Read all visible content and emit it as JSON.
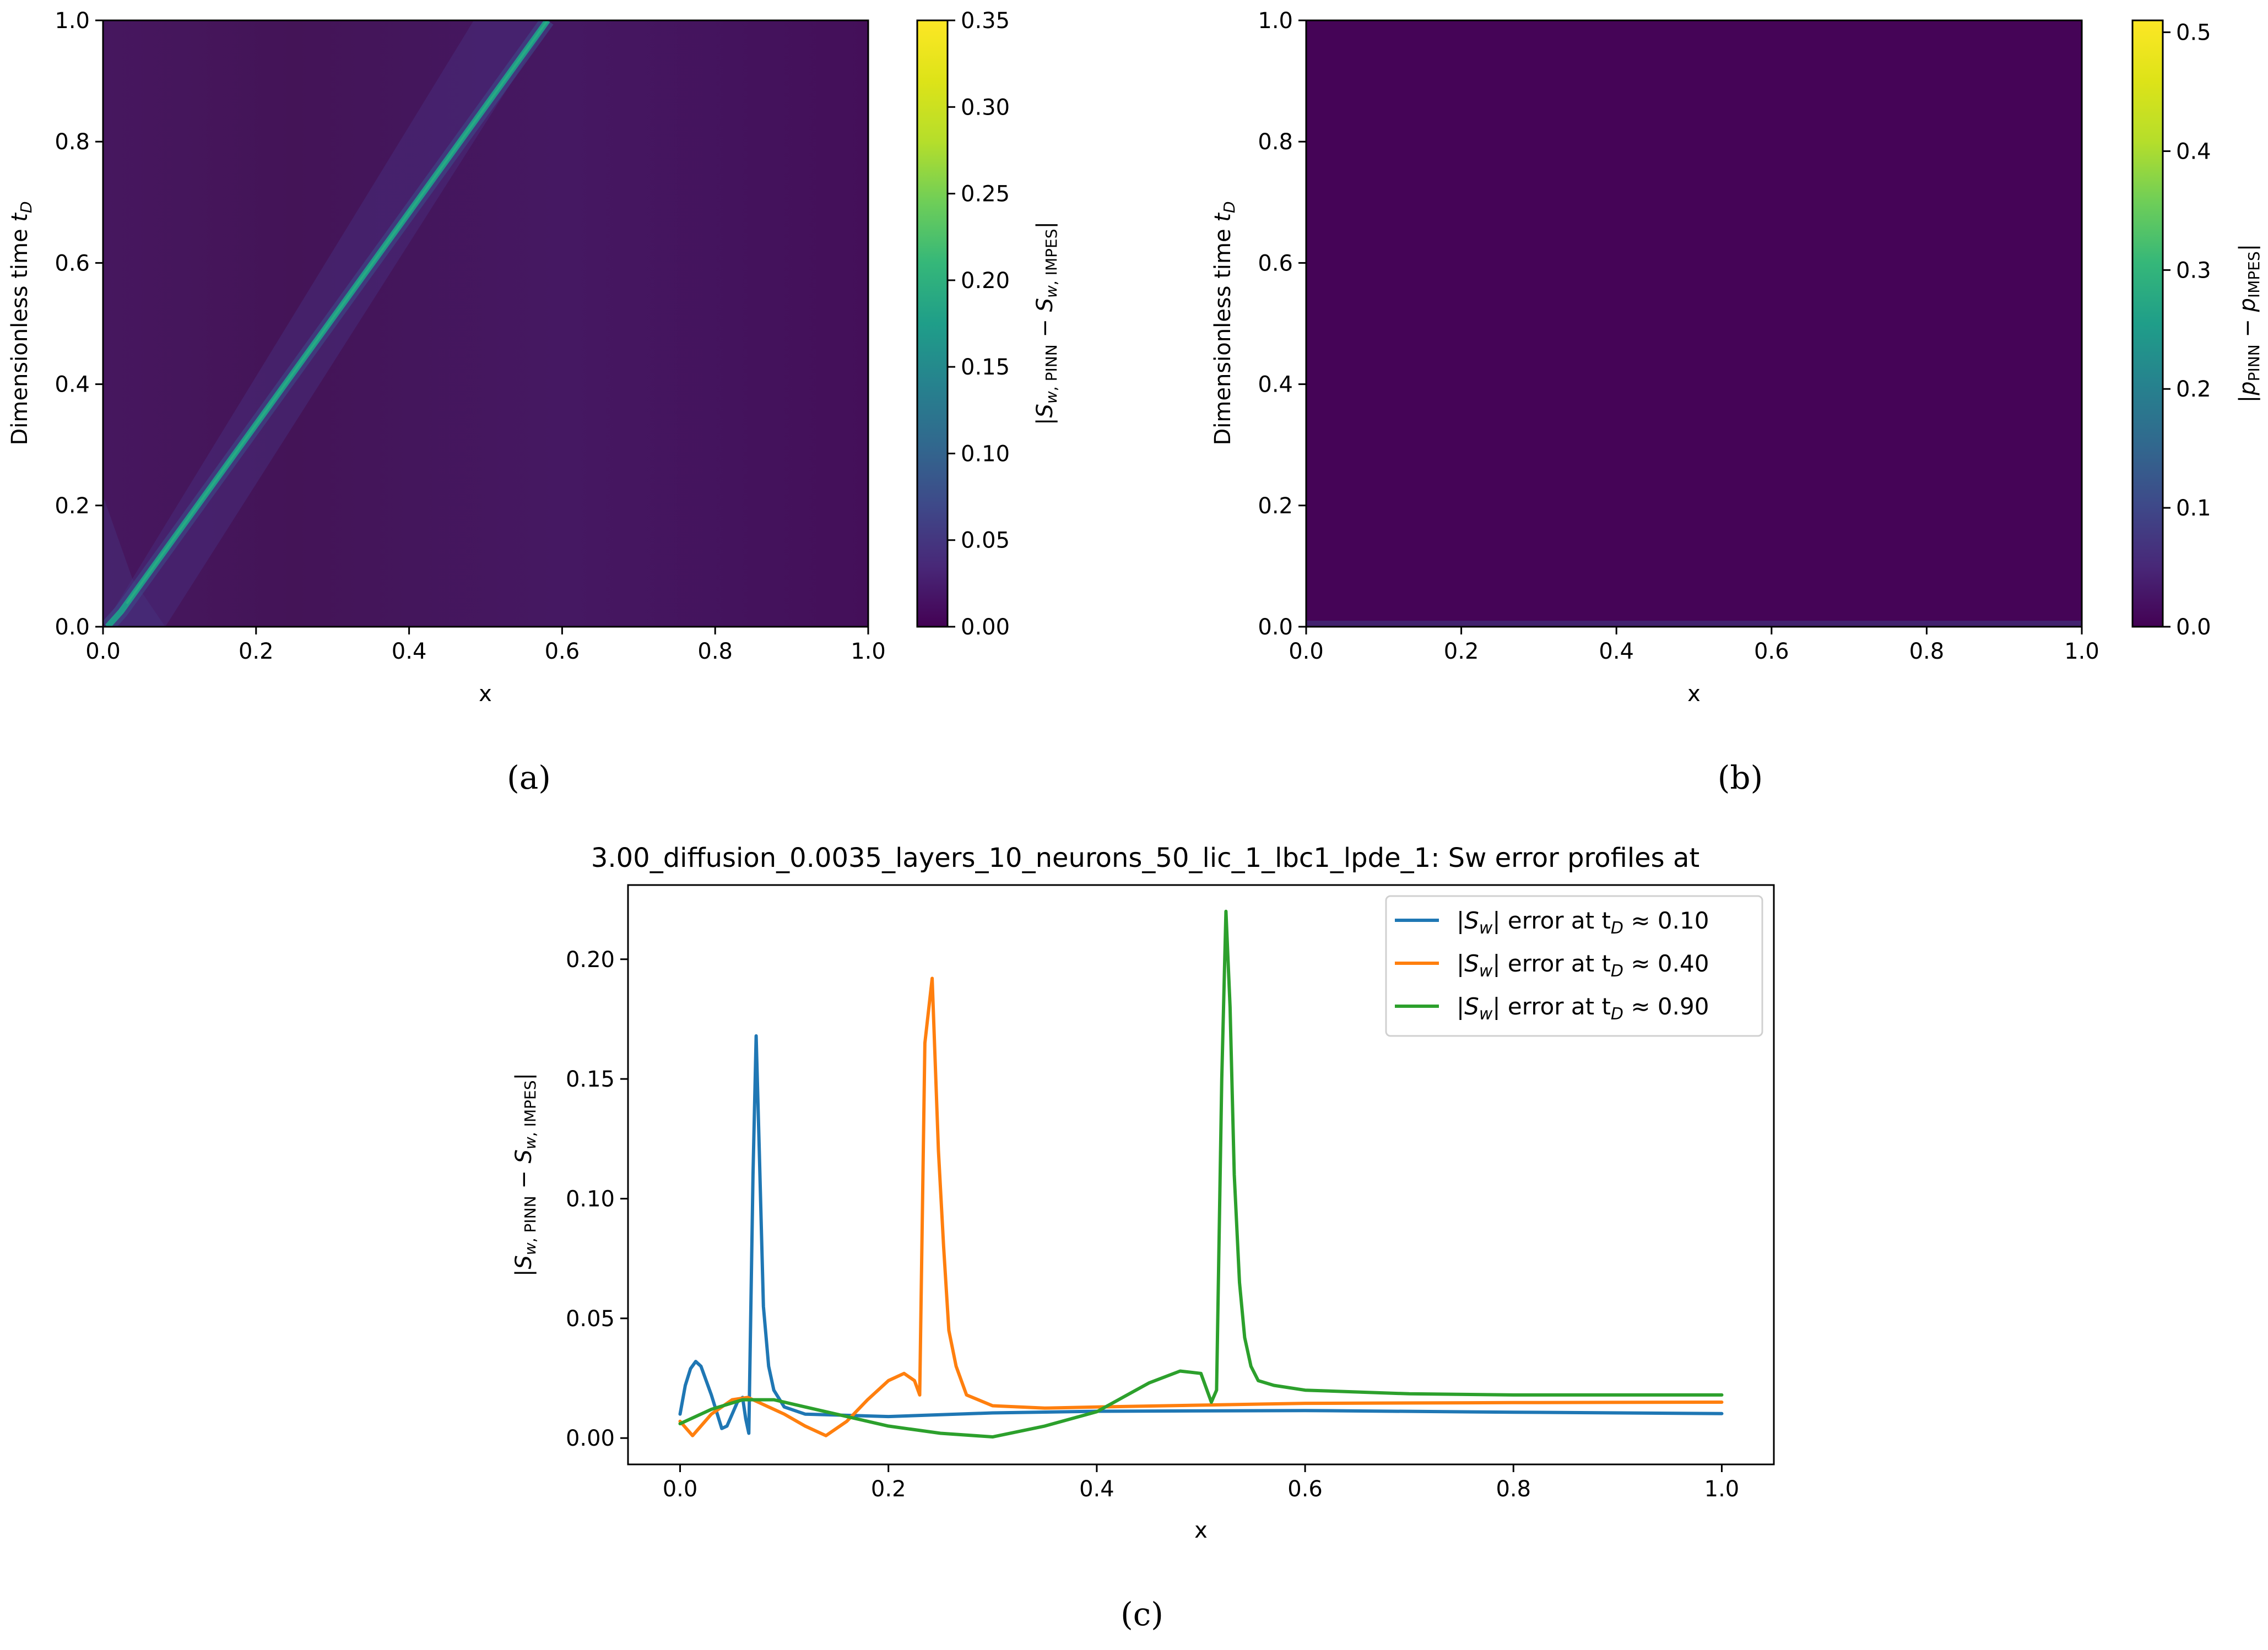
{
  "panels": {
    "a": "(a)",
    "b": "(b)",
    "c": "(c)"
  },
  "chart_data": [
    {
      "type": "heatmap",
      "panel": "(a)",
      "xlabel": "x",
      "ylabel": "Dimensionless time t_D",
      "xlim": [
        0.0,
        1.0
      ],
      "ylim": [
        0.0,
        1.0
      ],
      "xticks": [
        "0.0",
        "0.2",
        "0.4",
        "0.6",
        "0.8",
        "1.0"
      ],
      "yticks": [
        "0.0",
        "0.2",
        "0.4",
        "0.6",
        "0.8",
        "1.0"
      ],
      "colorbar": {
        "label": "|S_w,PINN − S_w,IMPES|",
        "range": [
          0.0,
          0.35
        ],
        "ticks": [
          "0.00",
          "0.05",
          "0.10",
          "0.15",
          "0.20",
          "0.25",
          "0.30",
          "0.35"
        ],
        "colormap": "viridis"
      },
      "feature": {
        "description": "error band along saturation front",
        "front_start": [
          0.0,
          0.0
        ],
        "front_end": [
          0.58,
          1.0
        ],
        "peak_error": 0.2
      }
    },
    {
      "type": "heatmap",
      "panel": "(b)",
      "xlabel": "x",
      "ylabel": "Dimensionless time t_D",
      "xlim": [
        0.0,
        1.0
      ],
      "ylim": [
        0.0,
        1.0
      ],
      "xticks": [
        "0.0",
        "0.2",
        "0.4",
        "0.6",
        "0.8",
        "1.0"
      ],
      "yticks": [
        "0.0",
        "0.2",
        "0.4",
        "0.6",
        "0.8",
        "1.0"
      ],
      "colorbar": {
        "label": "|p_PINN − p_IMPES|",
        "range": [
          0.0,
          0.51
        ],
        "ticks": [
          "0.0",
          "0.1",
          "0.2",
          "0.3",
          "0.4",
          "0.5"
        ],
        "colormap": "viridis"
      }
    },
    {
      "type": "line",
      "panel": "(c)",
      "title": "3.00_diffusion_0.0035_layers_10_neurons_50_lic_1_lbc1_lpde_1: Sw error profiles at",
      "xlabel": "x",
      "ylabel": "|S_w,PINN − S_w,IMPES|",
      "xlim": [
        -0.05,
        1.05
      ],
      "ylim": [
        -0.011,
        0.231
      ],
      "xticks": [
        "0.0",
        "0.2",
        "0.4",
        "0.6",
        "0.8",
        "1.0"
      ],
      "yticks": [
        "0.00",
        "0.05",
        "0.10",
        "0.15",
        "0.20"
      ],
      "legend_position": "top-right",
      "series": [
        {
          "name": "|S_w| error at t_D ≈ 0.10",
          "legend_main": "|S",
          "legend_sub": "w",
          "legend_mid": "| error at t",
          "legend_sub2": "D",
          "legend_tail": " ≈ 0.10",
          "color": "#1f77b4",
          "x": [
            0.0,
            0.005,
            0.01,
            0.015,
            0.02,
            0.03,
            0.04,
            0.045,
            0.05,
            0.055,
            0.06,
            0.063,
            0.066,
            0.07,
            0.073,
            0.076,
            0.08,
            0.085,
            0.09,
            0.1,
            0.12,
            0.2,
            0.3,
            0.4,
            0.6,
            0.8,
            1.0
          ],
          "y": [
            0.01,
            0.022,
            0.029,
            0.032,
            0.03,
            0.018,
            0.004,
            0.005,
            0.01,
            0.015,
            0.017,
            0.008,
            0.002,
            0.11,
            0.168,
            0.12,
            0.055,
            0.03,
            0.02,
            0.013,
            0.01,
            0.009,
            0.0105,
            0.0112,
            0.0115,
            0.0108,
            0.0102
          ]
        },
        {
          "name": "|S_w| error at t_D ≈ 0.40",
          "legend_main": "|S",
          "legend_sub": "w",
          "legend_mid": "| error at t",
          "legend_sub2": "D",
          "legend_tail": " ≈ 0.40",
          "color": "#ff7f0e",
          "x": [
            0.0,
            0.012,
            0.03,
            0.05,
            0.065,
            0.08,
            0.1,
            0.12,
            0.14,
            0.16,
            0.18,
            0.2,
            0.215,
            0.225,
            0.23,
            0.235,
            0.242,
            0.248,
            0.253,
            0.258,
            0.265,
            0.275,
            0.3,
            0.35,
            0.4,
            0.6,
            0.8,
            1.0
          ],
          "y": [
            0.007,
            0.001,
            0.01,
            0.016,
            0.017,
            0.014,
            0.01,
            0.005,
            0.001,
            0.007,
            0.016,
            0.024,
            0.027,
            0.024,
            0.018,
            0.165,
            0.192,
            0.12,
            0.08,
            0.045,
            0.03,
            0.018,
            0.0135,
            0.0125,
            0.013,
            0.0145,
            0.0148,
            0.015
          ]
        },
        {
          "name": "|S_w| error at t_D ≈ 0.90",
          "legend_main": "|S",
          "legend_sub": "w",
          "legend_mid": "| error at t",
          "legend_sub2": "D",
          "legend_tail": " ≈ 0.90",
          "color": "#2ca02c",
          "x": [
            0.0,
            0.03,
            0.06,
            0.09,
            0.12,
            0.15,
            0.2,
            0.25,
            0.3,
            0.35,
            0.4,
            0.45,
            0.48,
            0.5,
            0.51,
            0.515,
            0.52,
            0.524,
            0.528,
            0.532,
            0.537,
            0.542,
            0.548,
            0.555,
            0.57,
            0.6,
            0.7,
            0.8,
            1.0
          ],
          "y": [
            0.006,
            0.012,
            0.016,
            0.016,
            0.013,
            0.01,
            0.005,
            0.002,
            0.0005,
            0.005,
            0.011,
            0.023,
            0.028,
            0.027,
            0.015,
            0.02,
            0.15,
            0.22,
            0.18,
            0.11,
            0.065,
            0.042,
            0.03,
            0.024,
            0.022,
            0.02,
            0.0185,
            0.018,
            0.018
          ]
        }
      ]
    }
  ]
}
